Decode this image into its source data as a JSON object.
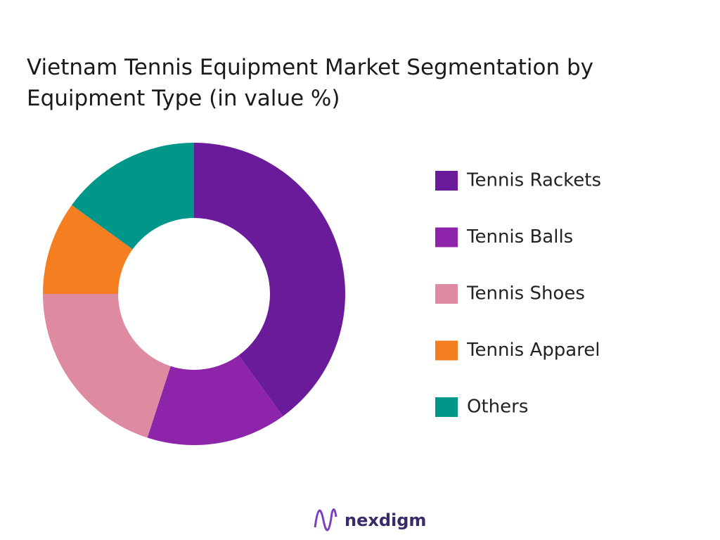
{
  "chart_data": {
    "type": "donut",
    "title": "Vietnam Tennis Equipment Market  Segmentation by Equipment Type (in value %)",
    "categories": [
      "Tennis Rackets",
      "Tennis Balls",
      "Tennis Shoes",
      "Tennis Apparel",
      "Others"
    ],
    "values": [
      40,
      15,
      20,
      10,
      15
    ],
    "colors": [
      "#6a1b9a",
      "#8e24aa",
      "#de8aa0",
      "#f57f20",
      "#00968a"
    ],
    "legend": "right"
  },
  "logo": "nexdigm"
}
